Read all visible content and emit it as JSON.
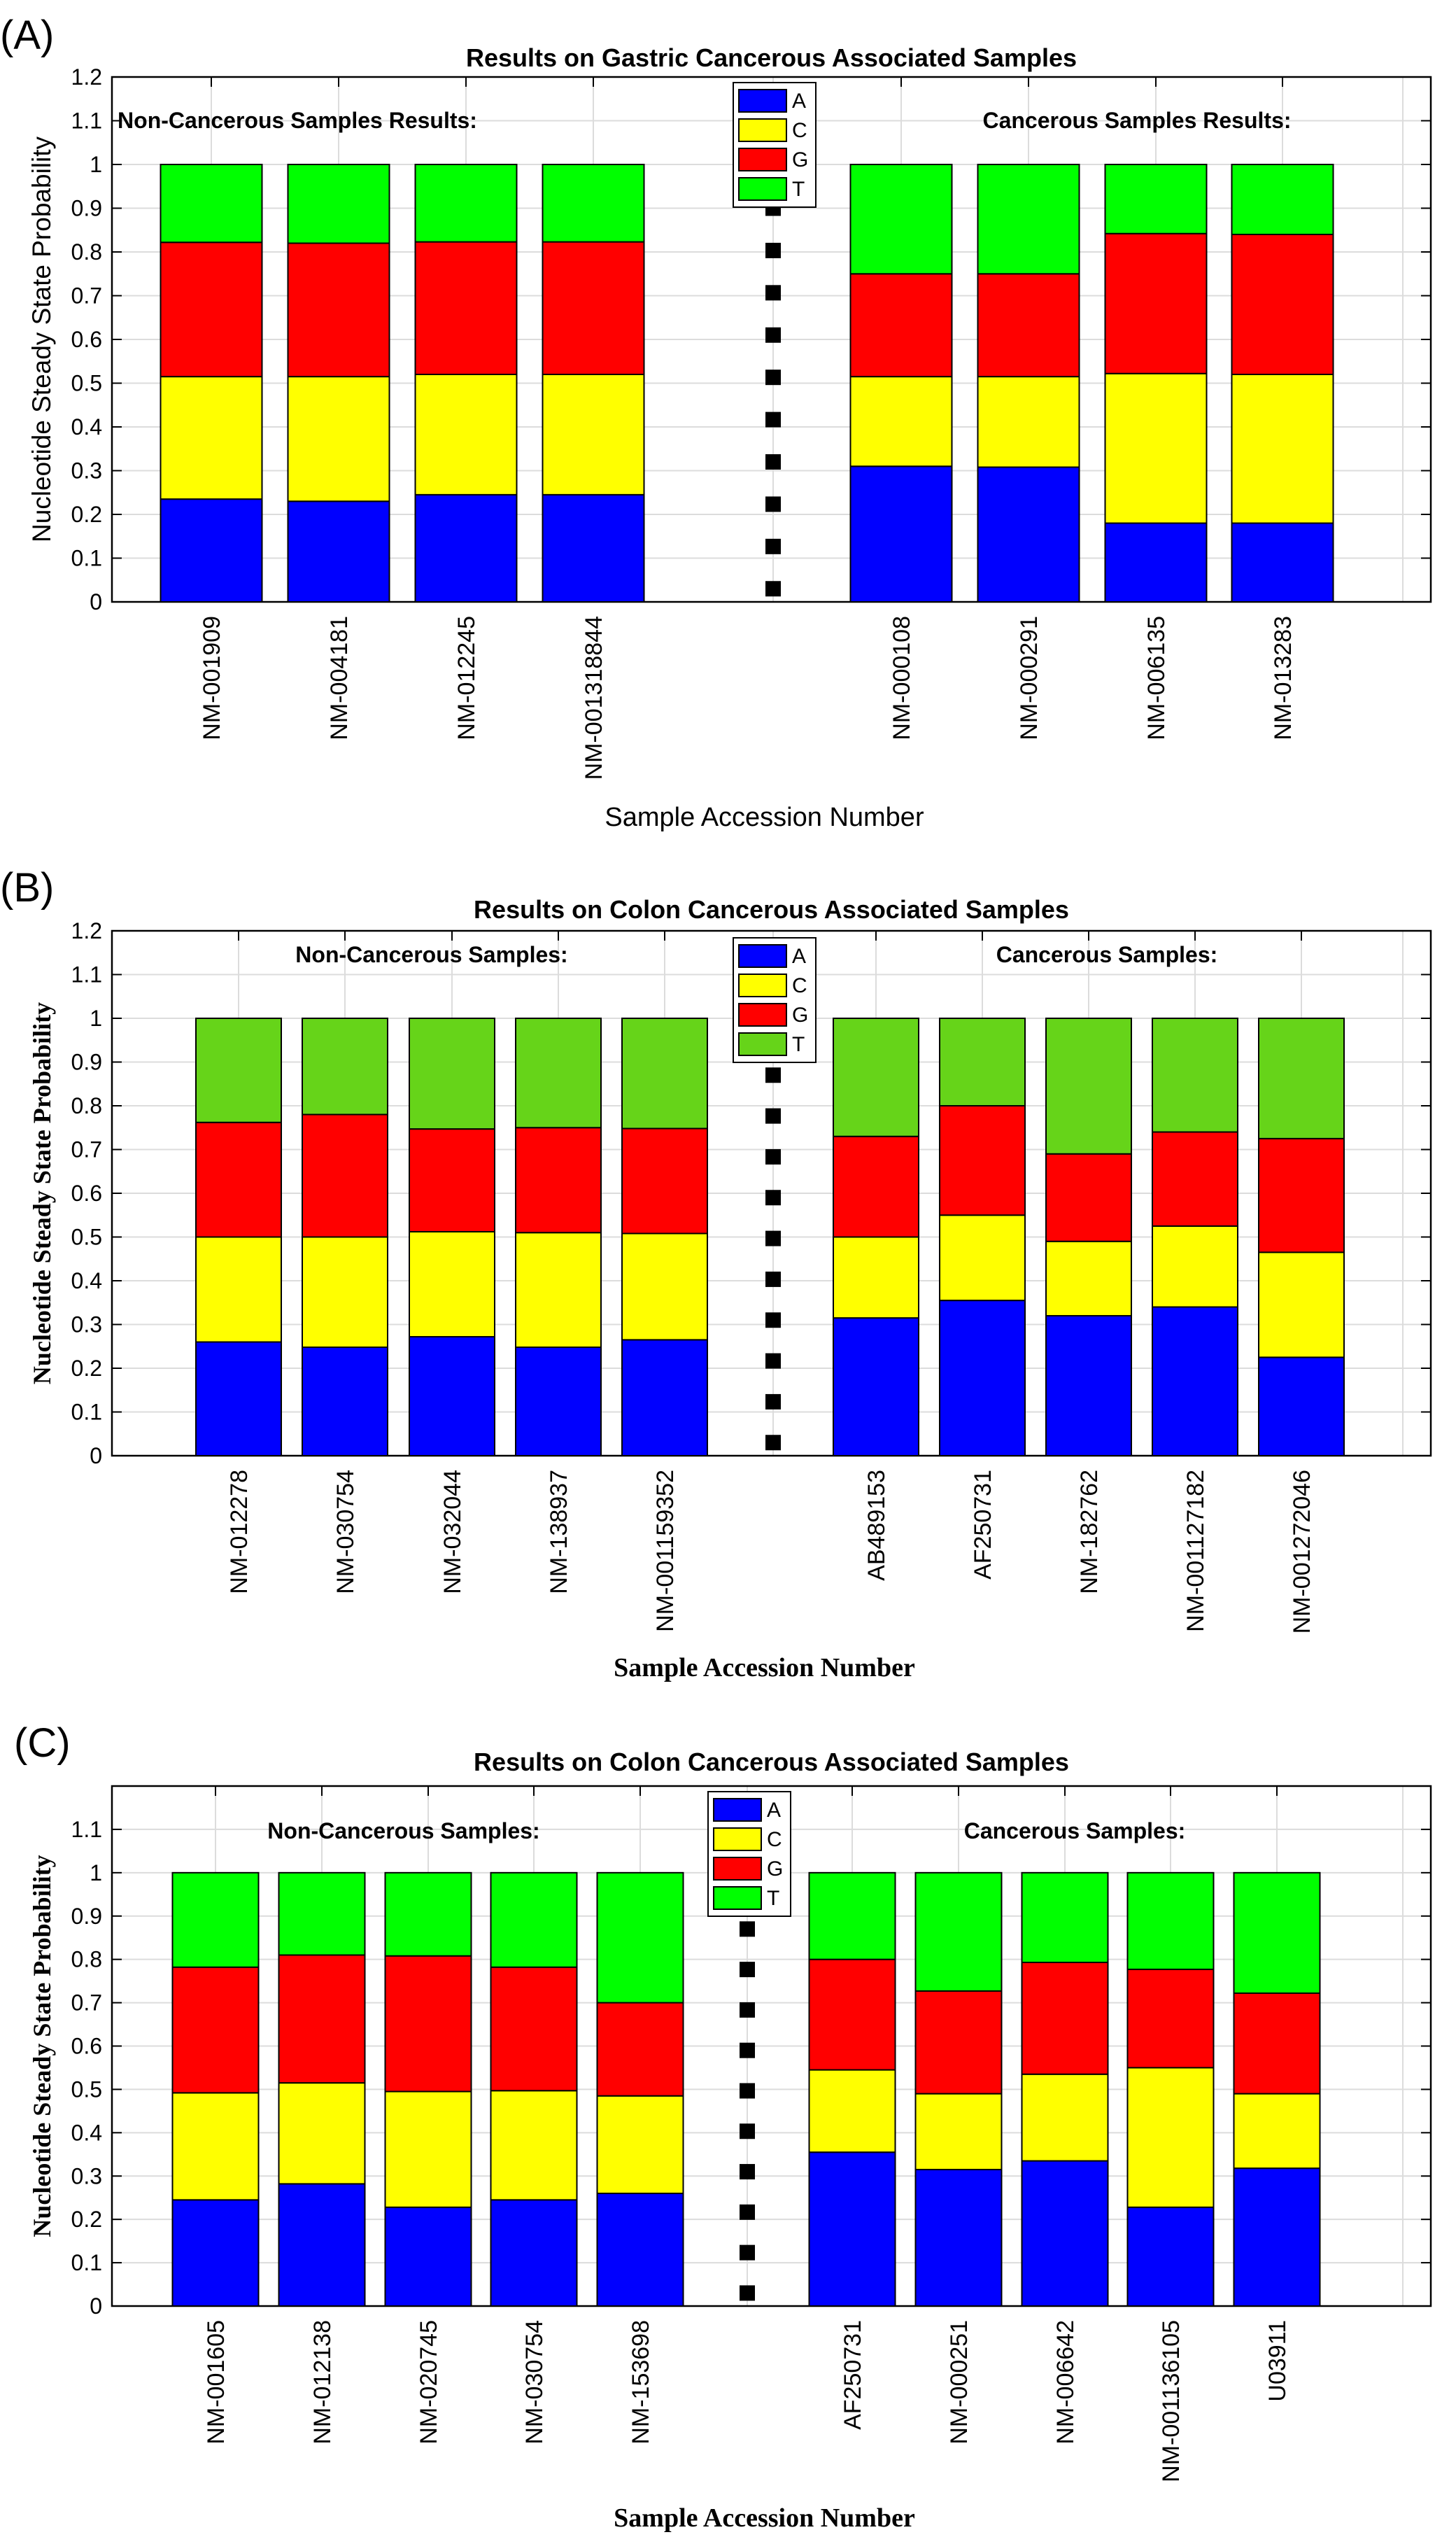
{
  "colors": {
    "A": "#0000ff",
    "C": "#ffff00",
    "G": "#ff0000",
    "T_bright": "#00ff00",
    "T_olive": "#66d419",
    "separator": "#000000"
  },
  "chart_data": [
    {
      "type": "bar",
      "panel_label": "(A)",
      "title": "Results on Gastric Cancerous Associated Samples",
      "xlabel": "Sample Accession Number",
      "ylabel": "Nucleotide Steady State Probability",
      "ylim": [
        0,
        1.2
      ],
      "yticks": [
        "0",
        "0.1",
        "0.2",
        "0.3",
        "0.4",
        "0.5",
        "0.6",
        "0.7",
        "0.8",
        "0.9",
        "1",
        "1.1",
        "1.2"
      ],
      "legend": [
        "A",
        "C",
        "G",
        "T"
      ],
      "group_labels": [
        "Non-Cancerous Samples Results:",
        "Cancerous Samples Results:"
      ],
      "categories": [
        "NM-001909",
        "NM-004181",
        "NM-012245",
        "NM-001318844",
        "NM-000108",
        "NM-000291",
        "NM-006135",
        "NM-013283"
      ],
      "series": [
        {
          "name": "A",
          "values": [
            0.235,
            0.23,
            0.245,
            0.245,
            0.31,
            0.308,
            0.18,
            0.18
          ]
        },
        {
          "name": "C",
          "values": [
            0.28,
            0.285,
            0.275,
            0.275,
            0.205,
            0.207,
            0.342,
            0.34
          ]
        },
        {
          "name": "G",
          "values": [
            0.307,
            0.305,
            0.303,
            0.303,
            0.235,
            0.235,
            0.32,
            0.32
          ]
        },
        {
          "name": "T",
          "values": [
            0.178,
            0.18,
            0.177,
            0.177,
            0.25,
            0.25,
            0.158,
            0.16
          ]
        }
      ]
    },
    {
      "type": "bar",
      "panel_label": "(B)",
      "title": "Results on Colon Cancerous Associated Samples",
      "xlabel": "Sample Accession Number",
      "ylabel": "Nucleotide Steady State Probability",
      "ylim": [
        0,
        1.2
      ],
      "yticks": [
        "0",
        "0.1",
        "0.2",
        "0.3",
        "0.4",
        "0.5",
        "0.6",
        "0.7",
        "0.8",
        "0.9",
        "1",
        "1.1",
        "1.2"
      ],
      "legend": [
        "A",
        "C",
        "G",
        "T"
      ],
      "group_labels": [
        "Non-Cancerous Samples:",
        "Cancerous Samples:"
      ],
      "categories": [
        "NM-012278",
        "NM-030754",
        "NM-032044",
        "NM-138937",
        "NM-001159352",
        "AB489153",
        "AF250731",
        "NM-182762",
        "NM-001127182",
        "NM-001272046"
      ],
      "series": [
        {
          "name": "A",
          "values": [
            0.26,
            0.248,
            0.272,
            0.248,
            0.265,
            0.315,
            0.355,
            0.32,
            0.34,
            0.225
          ]
        },
        {
          "name": "C",
          "values": [
            0.24,
            0.252,
            0.24,
            0.262,
            0.243,
            0.185,
            0.195,
            0.17,
            0.185,
            0.24
          ]
        },
        {
          "name": "G",
          "values": [
            0.262,
            0.28,
            0.235,
            0.24,
            0.24,
            0.23,
            0.25,
            0.2,
            0.215,
            0.26
          ]
        },
        {
          "name": "T",
          "values": [
            0.238,
            0.22,
            0.253,
            0.25,
            0.252,
            0.27,
            0.2,
            0.31,
            0.26,
            0.275
          ]
        }
      ]
    },
    {
      "type": "bar",
      "panel_label": "(C)",
      "title": "Results on Colon Cancerous Associated Samples",
      "xlabel": "Sample Accession Number",
      "ylabel": "Nucleotide Steady State Probability",
      "ylim": [
        0,
        1.2
      ],
      "yticks": [
        "0",
        "0.1",
        "0.2",
        "0.3",
        "0.4",
        "0.5",
        "0.6",
        "0.7",
        "0.8",
        "0.9",
        "1",
        "1.1"
      ],
      "legend": [
        "A",
        "C",
        "G",
        "T"
      ],
      "group_labels": [
        "Non-Cancerous Samples:",
        "Cancerous Samples:"
      ],
      "categories": [
        "NM-001605",
        "NM-012138",
        "NM-020745",
        "NM-030754",
        "NM-153698",
        "AF250731",
        "NM-000251",
        "NM-006642",
        "NM-001136105",
        "U03911"
      ],
      "series": [
        {
          "name": "A",
          "values": [
            0.245,
            0.282,
            0.228,
            0.245,
            0.26,
            0.355,
            0.315,
            0.335,
            0.228,
            0.318
          ]
        },
        {
          "name": "C",
          "values": [
            0.247,
            0.233,
            0.267,
            0.252,
            0.225,
            0.19,
            0.175,
            0.2,
            0.322,
            0.172
          ]
        },
        {
          "name": "G",
          "values": [
            0.29,
            0.295,
            0.313,
            0.285,
            0.215,
            0.255,
            0.237,
            0.258,
            0.227,
            0.232
          ]
        },
        {
          "name": "T",
          "values": [
            0.218,
            0.19,
            0.192,
            0.218,
            0.3,
            0.2,
            0.273,
            0.207,
            0.223,
            0.278
          ]
        }
      ]
    }
  ]
}
